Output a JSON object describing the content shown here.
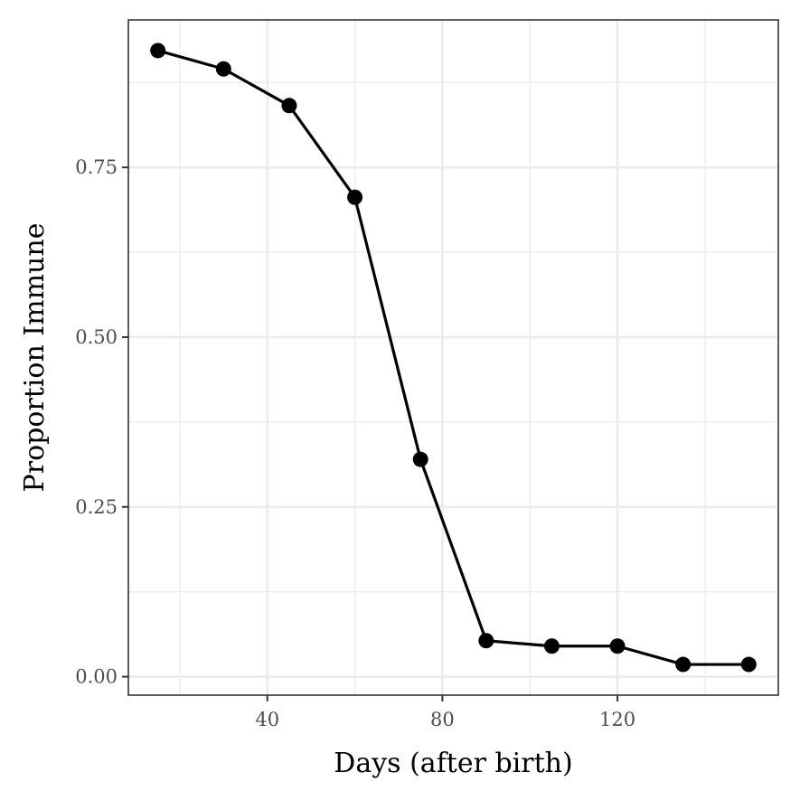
{
  "chart_data": {
    "type": "line",
    "title": "",
    "xlabel": "Days (after birth)",
    "ylabel": "Proportion Immune",
    "x": [
      15,
      30,
      45,
      60,
      75,
      90,
      105,
      120,
      135,
      150
    ],
    "series": [
      {
        "values": [
          0.922,
          0.895,
          0.841,
          0.706,
          0.32,
          0.053,
          0.045,
          0.045,
          0.018,
          0.018
        ],
        "color": "#000000"
      }
    ],
    "xlim": [
      8.25,
      156.75
    ],
    "ylim": [
      -0.0272,
      0.9672
    ],
    "xticks": [
      40,
      80,
      120
    ],
    "xtick_labels": [
      "40",
      "80",
      "120"
    ],
    "xminor": [
      20,
      60,
      100,
      140
    ],
    "yticks": [
      0.0,
      0.25,
      0.5,
      0.75
    ],
    "ytick_labels": [
      "0.00",
      "0.25",
      "0.50",
      "0.75"
    ],
    "yminor": [
      0.125,
      0.375,
      0.625,
      0.875
    ],
    "grid": true,
    "legend": "none"
  }
}
